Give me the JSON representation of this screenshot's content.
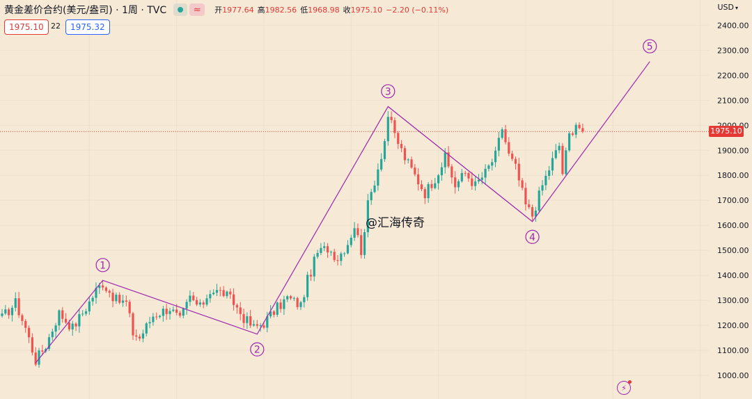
{
  "header": {
    "title": "黄金差价合约(美元/盎司) · 1周 · TVC",
    "open_label": "开",
    "open_value": "1977.64",
    "high_label": "高",
    "high_value": "1982.56",
    "low_label": "低",
    "low_value": "1968.98",
    "close_label": "收",
    "close_value": "1975.10",
    "change_value": "−2.20 (−0.11%)",
    "wave_glyph": "≈"
  },
  "badges": {
    "sell": "1975.10",
    "spread": "22",
    "buy": "1975.32"
  },
  "currency": "USD",
  "currency_caret": "▾",
  "current_price_label": "1975.10",
  "watermark": "@汇海传奇",
  "colors": {
    "background": "#f6e9d6",
    "up": "#26a69a",
    "down": "#ef5350",
    "wave": "#9c27b0",
    "price_line": "#e53935"
  },
  "icons": {
    "indicator_toggle": "dot-icon",
    "wave_toggle": "wave-icon",
    "flash": "lightning-icon"
  },
  "chart_data": {
    "type": "candlestick",
    "instrument": "黄金差价合约(美元/盎司)",
    "interval": "1周",
    "currency": "USD",
    "y_ticks": [
      1000,
      1100,
      1200,
      1300,
      1400,
      1500,
      1600,
      1700,
      1800,
      1900,
      2000,
      2100,
      2200,
      2300,
      2400
    ],
    "y_tick_labels": [
      "1000.00",
      "1100.00",
      "1200.00",
      "1300.00",
      "1400.00",
      "1500.00",
      "1600.00",
      "1700.00",
      "1800.00",
      "1900.00",
      "2000.00",
      "2100.00",
      "2200.00",
      "2300.00",
      "2400.00"
    ],
    "ylim": [
      960,
      2430
    ],
    "last_price": 1975.1,
    "wave_points": [
      {
        "label": "",
        "bar": 10,
        "price": 1050
      },
      {
        "label": "1",
        "bar": 30,
        "price": 1380
      },
      {
        "label": "2",
        "bar": 76,
        "price": 1165
      },
      {
        "label": "3",
        "bar": 115,
        "price": 2075
      },
      {
        "label": "4",
        "bar": 158,
        "price": 1615
      },
      {
        "label": "5",
        "bar": 193,
        "price": 2255
      }
    ],
    "guide_points": [
      {
        "label": "2",
        "bar": 76,
        "price": 1165
      },
      {
        "label": "3",
        "bar": 115,
        "price": 2075
      },
      {
        "label": "4",
        "bar": 158,
        "price": 1615
      }
    ],
    "series_anchors": [
      {
        "bar": 0,
        "price": 1230
      },
      {
        "bar": 4,
        "price": 1290
      },
      {
        "bar": 7,
        "price": 1190
      },
      {
        "bar": 10,
        "price": 1060
      },
      {
        "bar": 13,
        "price": 1120
      },
      {
        "bar": 17,
        "price": 1250
      },
      {
        "bar": 21,
        "price": 1190
      },
      {
        "bar": 25,
        "price": 1270
      },
      {
        "bar": 28,
        "price": 1340
      },
      {
        "bar": 30,
        "price": 1370
      },
      {
        "bar": 34,
        "price": 1300
      },
      {
        "bar": 37,
        "price": 1290
      },
      {
        "bar": 39,
        "price": 1170
      },
      {
        "bar": 41,
        "price": 1150
      },
      {
        "bar": 45,
        "price": 1240
      },
      {
        "bar": 50,
        "price": 1270
      },
      {
        "bar": 53,
        "price": 1220
      },
      {
        "bar": 56,
        "price": 1310
      },
      {
        "bar": 59,
        "price": 1270
      },
      {
        "bar": 62,
        "price": 1340
      },
      {
        "bar": 66,
        "price": 1330
      },
      {
        "bar": 69,
        "price": 1290
      },
      {
        "bar": 72,
        "price": 1230
      },
      {
        "bar": 75,
        "price": 1190
      },
      {
        "bar": 78,
        "price": 1210
      },
      {
        "bar": 82,
        "price": 1270
      },
      {
        "bar": 85,
        "price": 1310
      },
      {
        "bar": 89,
        "price": 1280
      },
      {
        "bar": 91,
        "price": 1380
      },
      {
        "bar": 94,
        "price": 1490
      },
      {
        "bar": 97,
        "price": 1510
      },
      {
        "bar": 100,
        "price": 1470
      },
      {
        "bar": 103,
        "price": 1530
      },
      {
        "bar": 105,
        "price": 1600
      },
      {
        "bar": 107,
        "price": 1500
      },
      {
        "bar": 109,
        "price": 1680
      },
      {
        "bar": 112,
        "price": 1830
      },
      {
        "bar": 114,
        "price": 1940
      },
      {
        "bar": 115,
        "price": 2040
      },
      {
        "bar": 117,
        "price": 1960
      },
      {
        "bar": 120,
        "price": 1870
      },
      {
        "bar": 123,
        "price": 1800
      },
      {
        "bar": 126,
        "price": 1730
      },
      {
        "bar": 129,
        "price": 1790
      },
      {
        "bar": 132,
        "price": 1870
      },
      {
        "bar": 135,
        "price": 1760
      },
      {
        "bar": 138,
        "price": 1810
      },
      {
        "bar": 141,
        "price": 1760
      },
      {
        "bar": 144,
        "price": 1810
      },
      {
        "bar": 147,
        "price": 1880
      },
      {
        "bar": 149,
        "price": 1990
      },
      {
        "bar": 151,
        "price": 1880
      },
      {
        "bar": 153,
        "price": 1830
      },
      {
        "bar": 156,
        "price": 1680
      },
      {
        "bar": 158,
        "price": 1640
      },
      {
        "bar": 161,
        "price": 1760
      },
      {
        "bar": 164,
        "price": 1860
      },
      {
        "bar": 166,
        "price": 1920
      },
      {
        "bar": 167,
        "price": 1810
      },
      {
        "bar": 169,
        "price": 1960
      },
      {
        "bar": 171,
        "price": 2010
      },
      {
        "bar": 173,
        "price": 1975
      }
    ]
  }
}
